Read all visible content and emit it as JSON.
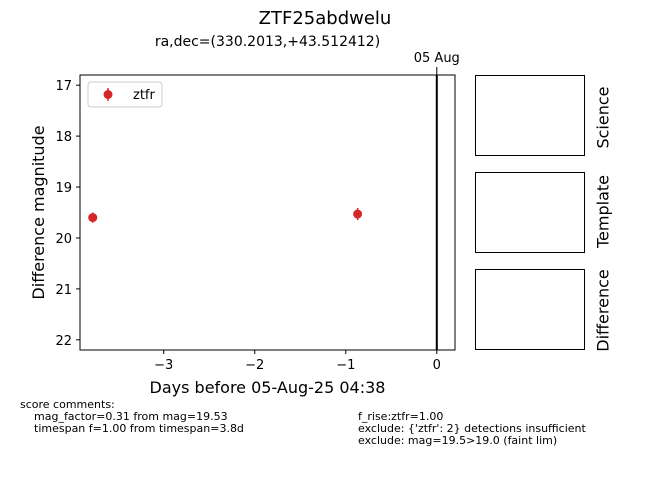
{
  "header": {
    "title": "ZTF25abdwelu",
    "subtitle": "ra,dec=(330.2013,+43.512412)"
  },
  "chart_data": {
    "type": "scatter",
    "xlabel": "Days before 05-Aug-25 04:38",
    "ylabel": "Difference magnitude",
    "xlim": [
      -3.92,
      0.2
    ],
    "ylim": [
      22.2,
      16.8
    ],
    "y_inverted": true,
    "x_ticks": [
      -3,
      -2,
      -1,
      0
    ],
    "x_tick_labels": [
      "−3",
      "−2",
      "−1",
      "0"
    ],
    "y_ticks": [
      17,
      18,
      19,
      20,
      21,
      22
    ],
    "y_tick_labels": [
      "17",
      "18",
      "19",
      "20",
      "21",
      "22"
    ],
    "grid": false,
    "legend_placement": "upper left",
    "series": [
      {
        "name": "ztfr",
        "color": "#d62728",
        "points": [
          {
            "x": -3.78,
            "y": 19.6,
            "yerr": 0.1
          },
          {
            "x": -0.87,
            "y": 19.53,
            "yerr": 0.12
          }
        ]
      }
    ],
    "markers": [
      {
        "x": 0,
        "label": "05 Aug",
        "color": "#000000"
      }
    ]
  },
  "stamps": [
    {
      "label": "Science"
    },
    {
      "label": "Template"
    },
    {
      "label": "Difference"
    }
  ],
  "comments": {
    "heading": "score comments:",
    "left": [
      "mag_factor=0.31 from mag=19.53",
      "timespan f=1.00 from timespan=3.8d"
    ],
    "right": [
      "f_rise:ztfr=1.00",
      "exclude: {'ztfr': 2} detections insufficient",
      "exclude: mag=19.5>19.0 (faint lim)"
    ]
  }
}
